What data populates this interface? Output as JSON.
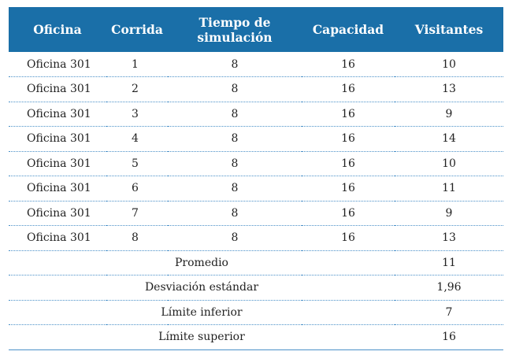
{
  "header": {
    "office": "Oficina",
    "run": "Corrida",
    "sim_time_line1": "Tiempo de",
    "sim_time_line2": "simulación",
    "capacity": "Capacidad",
    "visitors": "Visitantes"
  },
  "rows": [
    {
      "office": "Oficina 301",
      "run": "1",
      "sim_time": "8",
      "capacity": "16",
      "visitors": "10"
    },
    {
      "office": "Oficina 301",
      "run": "2",
      "sim_time": "8",
      "capacity": "16",
      "visitors": "13"
    },
    {
      "office": "Oficina 301",
      "run": "3",
      "sim_time": "8",
      "capacity": "16",
      "visitors": "9"
    },
    {
      "office": "Oficina 301",
      "run": "4",
      "sim_time": "8",
      "capacity": "16",
      "visitors": "14"
    },
    {
      "office": "Oficina 301",
      "run": "5",
      "sim_time": "8",
      "capacity": "16",
      "visitors": "10"
    },
    {
      "office": "Oficina 301",
      "run": "6",
      "sim_time": "8",
      "capacity": "16",
      "visitors": "11"
    },
    {
      "office": "Oficina 301",
      "run": "7",
      "sim_time": "8",
      "capacity": "16",
      "visitors": "9"
    },
    {
      "office": "Oficina 301",
      "run": "8",
      "sim_time": "8",
      "capacity": "16",
      "visitors": "13"
    }
  ],
  "summary": [
    {
      "label": "Promedio",
      "value": "11"
    },
    {
      "label": "Desviación estándar",
      "value": "1,96"
    },
    {
      "label": "Límite inferior",
      "value": "7"
    },
    {
      "label": "Límite superior",
      "value": "16"
    }
  ],
  "colors": {
    "header_bg": "#1a6fa8",
    "rule": "#4a90c8"
  }
}
